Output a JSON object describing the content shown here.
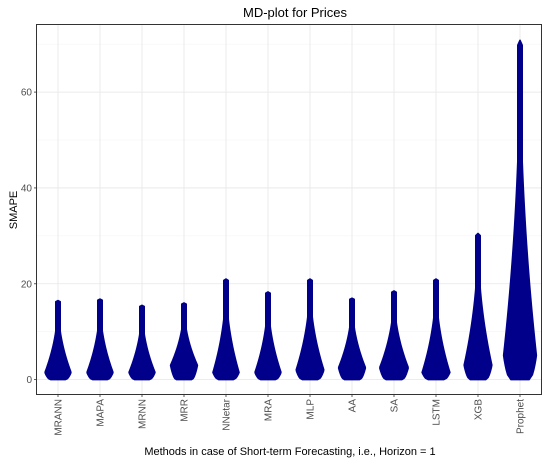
{
  "chart_data": {
    "type": "violin",
    "title": "MD-plot for Prices",
    "xlabel": "Methods in case of Short-term Forecasting, i.e., Horizon = 1",
    "ylabel": "SMAPE",
    "ylim": [
      -3,
      74
    ],
    "yticks": [
      0,
      20,
      40,
      60
    ],
    "grid": true,
    "legend": "none",
    "fill_color": "#00008b",
    "categories": [
      "MRANN",
      "MAPA",
      "MRNN",
      "MRR",
      "NNetar",
      "MRA",
      "MLP",
      "AA",
      "SA",
      "LSTM",
      "XGB",
      "Prophet"
    ],
    "series": [
      {
        "max": 16.5,
        "mode": 1.5,
        "width": 0.62
      },
      {
        "max": 16.8,
        "mode": 1.5,
        "width": 0.62
      },
      {
        "max": 15.5,
        "mode": 1.5,
        "width": 0.62
      },
      {
        "max": 16.0,
        "mode": 3.0,
        "width": 0.64
      },
      {
        "max": 21.0,
        "mode": 1.5,
        "width": 0.62
      },
      {
        "max": 18.3,
        "mode": 1.5,
        "width": 0.62
      },
      {
        "max": 21.0,
        "mode": 2.0,
        "width": 0.66
      },
      {
        "max": 17.0,
        "mode": 2.5,
        "width": 0.64
      },
      {
        "max": 18.5,
        "mode": 2.5,
        "width": 0.68
      },
      {
        "max": 21.0,
        "mode": 1.5,
        "width": 0.66
      },
      {
        "max": 30.5,
        "mode": 3.0,
        "width": 0.66
      },
      {
        "max": 70.8,
        "mode": 5.0,
        "width": 0.78
      }
    ]
  }
}
